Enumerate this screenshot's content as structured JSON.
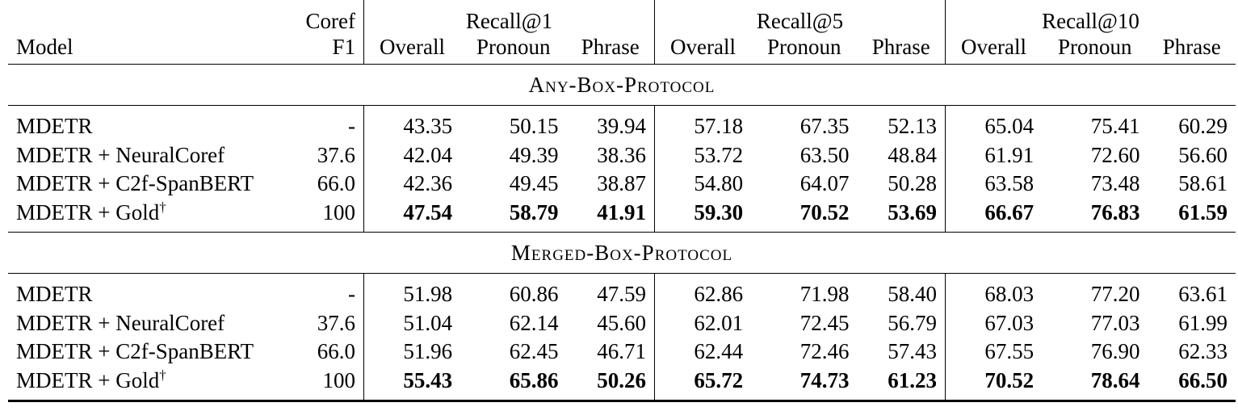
{
  "header": {
    "coref_label": "Coref",
    "f1_label": "F1",
    "model_label": "Model",
    "groups": [
      "Recall@1",
      "Recall@5",
      "Recall@10"
    ],
    "subcols": [
      "Overall",
      "Pronoun",
      "Phrase",
      "Overall",
      "Pronoun",
      "Phrase",
      "Overall",
      "Pronoun",
      "Phrase"
    ]
  },
  "sections": [
    {
      "title": "Any-Box-Protocol",
      "rows": [
        {
          "model": "MDETR",
          "dagger": "",
          "f1": "-",
          "values": [
            "43.35",
            "50.15",
            "39.94",
            "57.18",
            "67.35",
            "52.13",
            "65.04",
            "75.41",
            "60.29"
          ],
          "bold": false
        },
        {
          "model": "MDETR + NeuralCoref",
          "dagger": "",
          "f1": "37.6",
          "values": [
            "42.04",
            "49.39",
            "38.36",
            "53.72",
            "63.50",
            "48.84",
            "61.91",
            "72.60",
            "56.60"
          ],
          "bold": false
        },
        {
          "model": "MDETR + C2f-SpanBERT",
          "dagger": "",
          "f1": "66.0",
          "values": [
            "42.36",
            "49.45",
            "38.87",
            "54.80",
            "64.07",
            "50.28",
            "63.58",
            "73.48",
            "58.61"
          ],
          "bold": false
        },
        {
          "model": "MDETR + Gold",
          "dagger": "†",
          "f1": "100",
          "values": [
            "47.54",
            "58.79",
            "41.91",
            "59.30",
            "70.52",
            "53.69",
            "66.67",
            "76.83",
            "61.59"
          ],
          "bold": true
        }
      ]
    },
    {
      "title": "Merged-Box-Protocol",
      "rows": [
        {
          "model": "MDETR",
          "dagger": "",
          "f1": "-",
          "values": [
            "51.98",
            "60.86",
            "47.59",
            "62.86",
            "71.98",
            "58.40",
            "68.03",
            "77.20",
            "63.61"
          ],
          "bold": false
        },
        {
          "model": "MDETR + NeuralCoref",
          "dagger": "",
          "f1": "37.6",
          "values": [
            "51.04",
            "62.14",
            "45.60",
            "62.01",
            "72.45",
            "56.79",
            "67.03",
            "77.03",
            "61.99"
          ],
          "bold": false
        },
        {
          "model": "MDETR + C2f-SpanBERT",
          "dagger": "",
          "f1": "66.0",
          "values": [
            "51.96",
            "62.45",
            "46.71",
            "62.44",
            "72.46",
            "57.43",
            "67.55",
            "76.90",
            "62.33"
          ],
          "bold": false
        },
        {
          "model": "MDETR + Gold",
          "dagger": "†",
          "f1": "100",
          "values": [
            "55.43",
            "65.86",
            "50.26",
            "65.72",
            "74.73",
            "61.23",
            "70.52",
            "78.64",
            "66.50"
          ],
          "bold": true
        }
      ]
    }
  ]
}
